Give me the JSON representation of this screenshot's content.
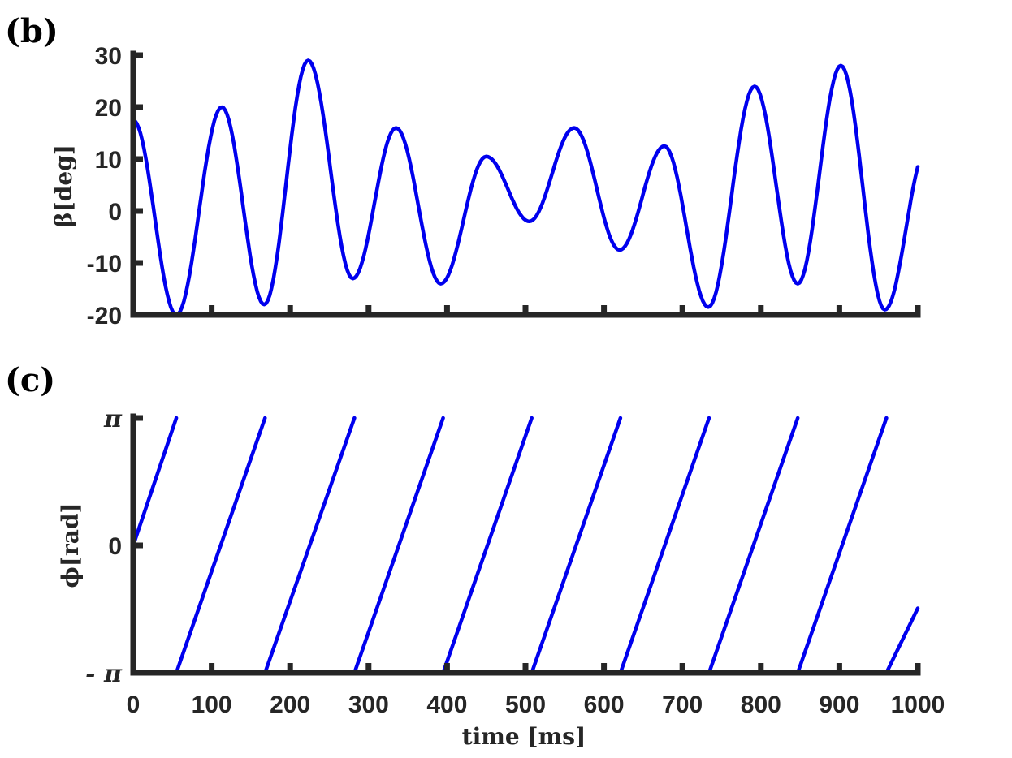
{
  "chart_data": [
    {
      "panel_label": "(b)",
      "type": "line",
      "ylabel": "β[deg]",
      "xlabel": "",
      "xlim": [
        0,
        1000
      ],
      "ylim": [
        -20,
        30
      ],
      "x_ticks": [
        0,
        100,
        200,
        300,
        400,
        500,
        600,
        700,
        800,
        900,
        1000
      ],
      "y_ticks": [
        -20,
        -10,
        0,
        10,
        20,
        30
      ],
      "y_tick_labels": [
        "-20",
        "-10",
        "0",
        "10",
        "20",
        "30"
      ],
      "grid": false,
      "color": "#0000ee",
      "series": [
        {
          "x": [
            0,
            55,
            113,
            167,
            223,
            280,
            335,
            392,
            450,
            505,
            562,
            620,
            677,
            733,
            792,
            847,
            902,
            958,
            1000
          ],
          "values": [
            17.5,
            -20,
            20,
            -18,
            29,
            -13,
            16,
            -14,
            10.5,
            -2,
            16,
            -7.5,
            12.5,
            -18.5,
            24,
            -14,
            28,
            -19,
            8.5
          ]
        }
      ]
    },
    {
      "panel_label": "(c)",
      "type": "line",
      "ylabel": "ϕ[rad]",
      "xlabel": "time [ms]",
      "xlim": [
        0,
        1000
      ],
      "ylim": [
        -3.14159,
        3.14159
      ],
      "x_ticks": [
        0,
        100,
        200,
        300,
        400,
        500,
        600,
        700,
        800,
        900,
        1000
      ],
      "x_tick_labels": [
        "0",
        "100",
        "200",
        "300",
        "400",
        "500",
        "600",
        "700",
        "800",
        "900",
        "1000"
      ],
      "y_ticks": [
        -3.14159,
        0,
        3.14159
      ],
      "y_tick_labels": [
        "- π",
        "0",
        "π"
      ],
      "grid": false,
      "color": "#0000ee",
      "series": [
        {
          "segments": [
            {
              "x": [
                0,
                55
              ],
              "y": [
                0,
                3.14159
              ]
            },
            {
              "x": [
                55,
                168
              ],
              "y": [
                -3.14159,
                3.14159
              ]
            },
            {
              "x": [
                168,
                282
              ],
              "y": [
                -3.14159,
                3.14159
              ]
            },
            {
              "x": [
                282,
                395
              ],
              "y": [
                -3.14159,
                3.14159
              ]
            },
            {
              "x": [
                395,
                508
              ],
              "y": [
                -3.14159,
                3.14159
              ]
            },
            {
              "x": [
                508,
                621
              ],
              "y": [
                -3.14159,
                3.14159
              ]
            },
            {
              "x": [
                621,
                734
              ],
              "y": [
                -3.14159,
                3.14159
              ]
            },
            {
              "x": [
                734,
                847
              ],
              "y": [
                -3.14159,
                3.14159
              ]
            },
            {
              "x": [
                847,
                960
              ],
              "y": [
                -3.14159,
                3.14159
              ]
            },
            {
              "x": [
                960,
                1000
              ],
              "y": [
                -3.14159,
                -1.55
              ]
            }
          ]
        }
      ]
    }
  ]
}
